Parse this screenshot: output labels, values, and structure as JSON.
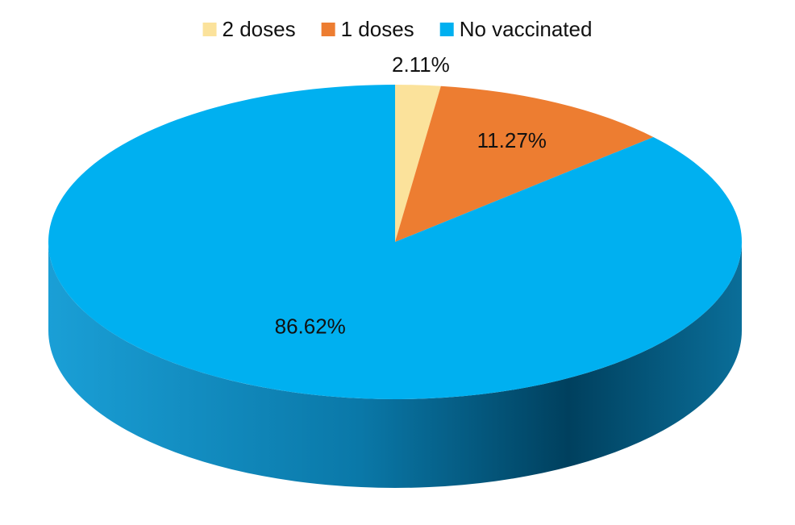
{
  "chart_data": {
    "type": "pie",
    "three_d": true,
    "categories": [
      "2 doses",
      "1 doses",
      "No vaccinated"
    ],
    "values": [
      2.11,
      11.27,
      86.62
    ],
    "value_labels": [
      "2.11%",
      "11.27%",
      "86.62%"
    ],
    "colors": [
      "#fbe29b",
      "#ed7d31",
      "#00b0f0"
    ],
    "legend": "top"
  }
}
